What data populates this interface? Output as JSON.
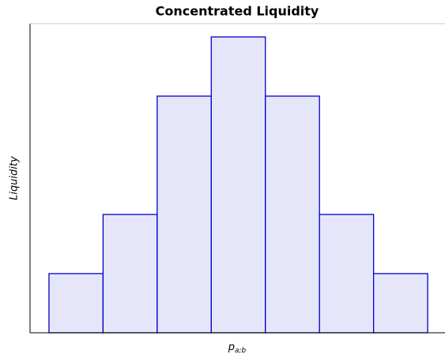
{
  "chart_data": {
    "type": "histogram",
    "title": "Concentrated Liquidity",
    "x_label": {
      "base": "p",
      "subscript": "a;b"
    },
    "y_label": "Liquidity",
    "bins": [
      0,
      1,
      2,
      3,
      4,
      5,
      6,
      7
    ],
    "values": [
      2,
      4,
      8,
      10,
      8,
      4,
      2
    ],
    "xlim": [
      -0.35,
      7.32
    ],
    "ylim": [
      0,
      10.45
    ],
    "fill": "#e6e6fa",
    "edge_color": "#0000cc"
  }
}
